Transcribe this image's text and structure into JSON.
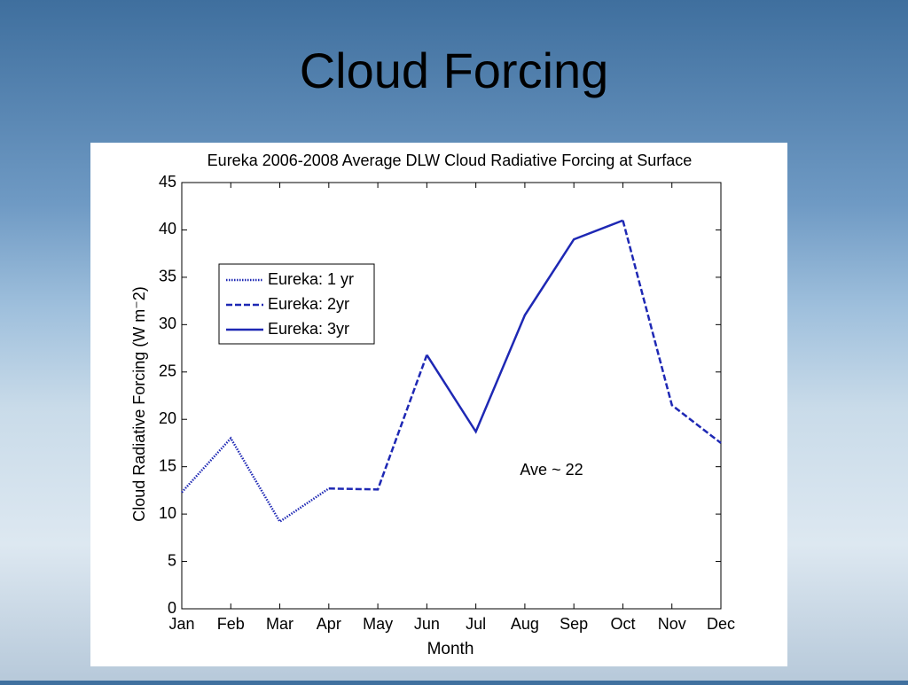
{
  "title": "Cloud Forcing",
  "chart_data": {
    "type": "line",
    "title": "Eureka 2006-2008 Average DLW Cloud  Radiative Forcing at Surface",
    "x_label": "Month",
    "y_label": "Cloud Radiative Forcing (W m⁻2)",
    "annotation": "Ave ~ 22",
    "categories": [
      "Jan",
      "Feb",
      "Mar",
      "Apr",
      "May",
      "Jun",
      "Jul",
      "Aug",
      "Sep",
      "Oct",
      "Nov",
      "Dec"
    ],
    "series": [
      {
        "name": "Eureka: 1 yr",
        "color": "#1e28b4",
        "linestyle": "dotted",
        "values": [
          12.3,
          18,
          9.2,
          12.7,
          null,
          null,
          null,
          null,
          null,
          null,
          null,
          null
        ]
      },
      {
        "name": "Eureka: 2yr",
        "color": "#1e28b4",
        "linestyle": "dashed",
        "values": [
          null,
          null,
          null,
          12.7,
          12.6,
          26.8,
          null,
          null,
          null,
          41,
          21.5,
          17.5
        ]
      },
      {
        "name": "Eureka: 3yr",
        "color": "#1e28b4",
        "linestyle": "solid",
        "values": [
          null,
          null,
          null,
          null,
          null,
          26.8,
          18.7,
          31,
          39,
          41,
          null,
          null
        ]
      }
    ],
    "ylim": [
      0,
      45
    ],
    "yticks": [
      0,
      5,
      10,
      15,
      20,
      25,
      30,
      35,
      40,
      45
    ],
    "grid": false,
    "legend": "upper left"
  }
}
